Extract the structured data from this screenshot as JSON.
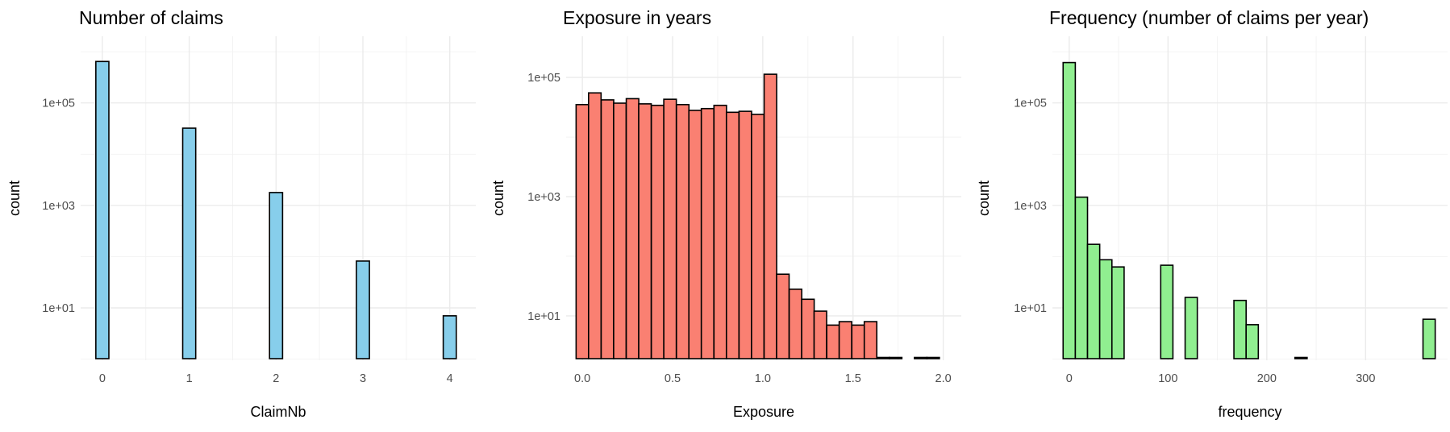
{
  "chart_data": [
    {
      "type": "bar",
      "title": "Number of claims",
      "xlabel": "ClaimNb",
      "ylabel": "count",
      "y_scale": "log10",
      "ylim": [
        0.95,
        2000000
      ],
      "xlim": [
        -0.25,
        4.3
      ],
      "fill_color": "#87CEEB",
      "grid": true,
      "bin_width": 0.15,
      "x_ticks": [
        0,
        1,
        2,
        3,
        4
      ],
      "x_tick_labels": [
        "0",
        "1",
        "2",
        "3",
        "4"
      ],
      "y_ticks": [
        10,
        1000,
        100000
      ],
      "y_tick_labels": [
        "1e+01",
        "1e+03",
        "1e+05"
      ],
      "x": [
        0,
        1,
        2,
        3,
        4
      ],
      "values": [
        643953,
        32178,
        1784,
        82,
        7
      ]
    },
    {
      "type": "bar",
      "title": "Exposure in years",
      "xlabel": "Exposure",
      "ylabel": "count",
      "y_scale": "log10",
      "ylim": [
        1.8,
        490000
      ],
      "xlim": [
        -0.09,
        2.1
      ],
      "fill_color": "#FA8072",
      "grid": true,
      "bin_width": 0.0694,
      "x_ticks": [
        0.0,
        0.5,
        1.0,
        1.5,
        2.0
      ],
      "x_tick_labels": [
        "0.0",
        "0.5",
        "1.0",
        "1.5",
        "2.0"
      ],
      "y_ticks": [
        10,
        1000,
        100000
      ],
      "y_tick_labels": [
        "1e+01",
        "1e+03",
        "1e+05"
      ],
      "x": [
        0.0,
        0.069,
        0.139,
        0.208,
        0.278,
        0.347,
        0.417,
        0.486,
        0.556,
        0.625,
        0.694,
        0.764,
        0.833,
        0.903,
        0.972,
        1.042,
        1.111,
        1.181,
        1.25,
        1.319,
        1.389,
        1.458,
        1.528,
        1.597,
        1.667,
        1.736,
        1.806,
        1.875,
        1.944,
        2.014
      ],
      "values": [
        35000,
        55000,
        42000,
        37000,
        44000,
        36000,
        34000,
        43000,
        35000,
        28000,
        30000,
        34000,
        26000,
        27000,
        24000,
        113000,
        50,
        28,
        19,
        12,
        7,
        8,
        7,
        8,
        2,
        1.8,
        0,
        2,
        2,
        0
      ]
    },
    {
      "type": "bar",
      "title": "Frequency (number of claims per year)",
      "xlabel": "frequency",
      "ylabel": "count",
      "y_scale": "log10",
      "ylim": [
        0.95,
        2000000
      ],
      "xlim": [
        -17,
        383
      ],
      "fill_color": "#90EE90",
      "grid": true,
      "bin_width": 12.35,
      "x_ticks": [
        0,
        100,
        200,
        300
      ],
      "x_tick_labels": [
        "0",
        "100",
        "200",
        "300"
      ],
      "y_ticks": [
        10,
        1000,
        100000
      ],
      "y_tick_labels": [
        "1e+01",
        "1e+03",
        "1e+05"
      ],
      "x": [
        0,
        12.35,
        24.7,
        37.05,
        49.4,
        98.8,
        123.5,
        172.9,
        185.25,
        234.65,
        364.3
      ],
      "values": [
        614000,
        1450,
        174,
        87,
        63,
        68,
        16,
        14,
        4.7,
        1,
        6
      ]
    }
  ]
}
